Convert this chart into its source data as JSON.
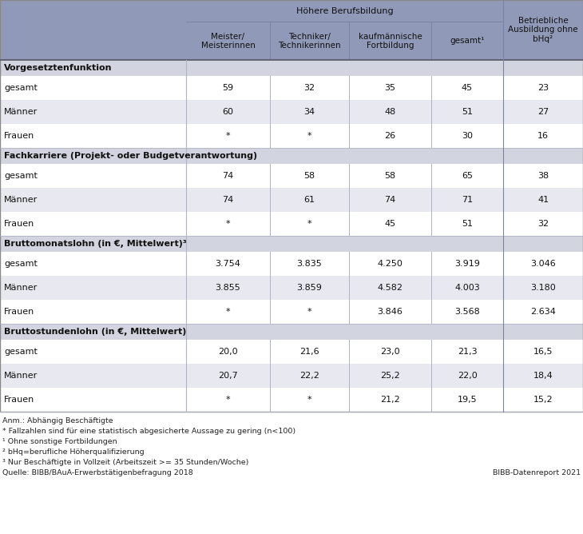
{
  "sections": [
    {
      "title": "Vorgesetztenfunktion",
      "rows": [
        {
          "label": "gesamt",
          "values": [
            "59",
            "32",
            "35",
            "45",
            "23"
          ]
        },
        {
          "label": "Männer",
          "values": [
            "60",
            "34",
            "48",
            "51",
            "27"
          ]
        },
        {
          "label": "Frauen",
          "values": [
            "*",
            "*",
            "26",
            "30",
            "16"
          ]
        }
      ]
    },
    {
      "title": "Fachkarriere (Projekt- oder Budgetverantwortung)",
      "rows": [
        {
          "label": "gesamt",
          "values": [
            "74",
            "58",
            "58",
            "65",
            "38"
          ]
        },
        {
          "label": "Männer",
          "values": [
            "74",
            "61",
            "74",
            "71",
            "41"
          ]
        },
        {
          "label": "Frauen",
          "values": [
            "*",
            "*",
            "45",
            "51",
            "32"
          ]
        }
      ]
    },
    {
      "title": "Bruttomonatslohn (in €, Mittelwert)³",
      "rows": [
        {
          "label": "gesamt",
          "values": [
            "3.754",
            "3.835",
            "4.250",
            "3.919",
            "3.046"
          ]
        },
        {
          "label": "Männer",
          "values": [
            "3.855",
            "3.859",
            "4.582",
            "4.003",
            "3.180"
          ]
        },
        {
          "label": "Frauen",
          "values": [
            "*",
            "*",
            "3.846",
            "3.568",
            "2.634"
          ]
        }
      ]
    },
    {
      "title": "Bruttostundenlohn (in €, Mittelwert)",
      "rows": [
        {
          "label": "gesamt",
          "values": [
            "20,0",
            "21,6",
            "23,0",
            "21,3",
            "16,5"
          ]
        },
        {
          "label": "Männer",
          "values": [
            "20,7",
            "22,2",
            "25,2",
            "22,0",
            "18,4"
          ]
        },
        {
          "label": "Frauen",
          "values": [
            "*",
            "*",
            "21,2",
            "19,5",
            "15,2"
          ]
        }
      ]
    }
  ],
  "footnotes": [
    "Anm.: Abhängig Beschäftigte",
    "* Fallzahlen sind für eine statistisch abgesicherte Aussage zu gering (n<100)",
    "¹ Ohne sonstige Fortbildungen",
    "² bHq=berufliche Höherqualifizierung",
    "³ Nur Beschäftigte in Vollzeit (Arbeitszeit >= 35 Stunden/Woche)",
    "Quelle: BIBB/BAuA-Erwerbstätigenbefragung 2018"
  ],
  "source_right": "BIBB-Datenreport 2021",
  "header_bg": "#9099b7",
  "section_bg": "#d2d5e0",
  "data_bg_white": "#ffffff",
  "data_bg_gray": "#e8e9f0",
  "col_sep_color": "#b0b4c8",
  "border_color": "#888888"
}
